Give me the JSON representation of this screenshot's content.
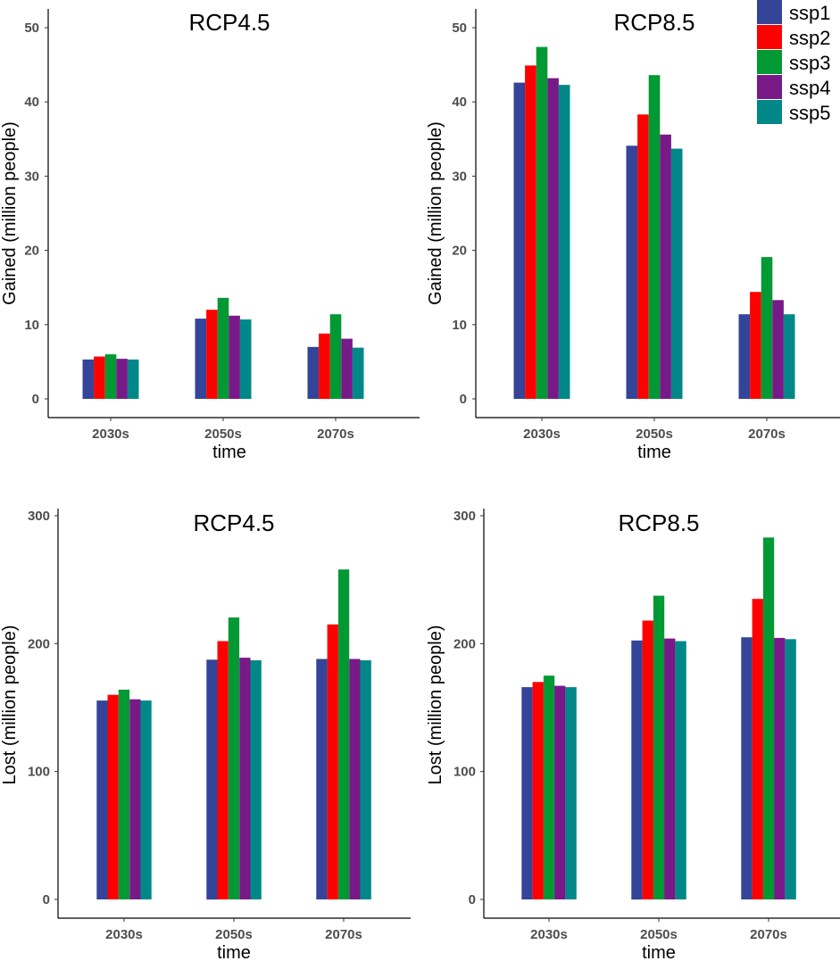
{
  "chart_data": [
    {
      "id": "gained-rcp45",
      "type": "bar",
      "title": "RCP4.5",
      "xlabel": "time",
      "ylabel": "Gained (million people)",
      "categories": [
        "2030s",
        "2050s",
        "2070s"
      ],
      "ylim": [
        0,
        50
      ],
      "yticks": [
        0,
        10,
        20,
        30,
        40,
        50
      ],
      "series": [
        {
          "name": "ssp1",
          "values": [
            5.3,
            10.8,
            7.0
          ]
        },
        {
          "name": "ssp2",
          "values": [
            5.7,
            12.0,
            8.8
          ]
        },
        {
          "name": "ssp3",
          "values": [
            6.0,
            13.6,
            11.4
          ]
        },
        {
          "name": "ssp4",
          "values": [
            5.4,
            11.2,
            8.1
          ]
        },
        {
          "name": "ssp5",
          "values": [
            5.3,
            10.7,
            6.9
          ]
        }
      ]
    },
    {
      "id": "gained-rcp85",
      "type": "bar",
      "title": "RCP8.5",
      "xlabel": "time",
      "ylabel": "Gained (million people)",
      "categories": [
        "2030s",
        "2050s",
        "2070s"
      ],
      "ylim": [
        0,
        50
      ],
      "yticks": [
        0,
        10,
        20,
        30,
        40,
        50
      ],
      "series": [
        {
          "name": "ssp1",
          "values": [
            42.6,
            34.1,
            11.4
          ]
        },
        {
          "name": "ssp2",
          "values": [
            44.9,
            38.3,
            14.4
          ]
        },
        {
          "name": "ssp3",
          "values": [
            47.4,
            43.6,
            19.1
          ]
        },
        {
          "name": "ssp4",
          "values": [
            43.2,
            35.6,
            13.3
          ]
        },
        {
          "name": "ssp5",
          "values": [
            42.3,
            33.7,
            11.4
          ]
        }
      ]
    },
    {
      "id": "lost-rcp45",
      "type": "bar",
      "title": "RCP4.5",
      "xlabel": "time",
      "ylabel": "Lost (million people)",
      "categories": [
        "2030s",
        "2050s",
        "2070s"
      ],
      "ylim": [
        0,
        300
      ],
      "yticks": [
        0,
        100,
        200,
        300
      ],
      "series": [
        {
          "name": "ssp1",
          "values": [
            155.5,
            187.5,
            188.0
          ]
        },
        {
          "name": "ssp2",
          "values": [
            160.0,
            202.0,
            215.0
          ]
        },
        {
          "name": "ssp3",
          "values": [
            164.0,
            220.5,
            258.0
          ]
        },
        {
          "name": "ssp4",
          "values": [
            156.5,
            189.0,
            188.0
          ]
        },
        {
          "name": "ssp5",
          "values": [
            155.5,
            187.0,
            187.0
          ]
        }
      ]
    },
    {
      "id": "lost-rcp85",
      "type": "bar",
      "title": "RCP8.5",
      "xlabel": "time",
      "ylabel": "Lost (million people)",
      "categories": [
        "2030s",
        "2050s",
        "2070s"
      ],
      "ylim": [
        0,
        300
      ],
      "yticks": [
        0,
        100,
        200,
        300
      ],
      "series": [
        {
          "name": "ssp1",
          "values": [
            166.0,
            202.5,
            205.0
          ]
        },
        {
          "name": "ssp2",
          "values": [
            170.0,
            218.0,
            235.0
          ]
        },
        {
          "name": "ssp3",
          "values": [
            175.0,
            237.5,
            283.0
          ]
        },
        {
          "name": "ssp4",
          "values": [
            167.0,
            204.0,
            204.5
          ]
        },
        {
          "name": "ssp5",
          "values": [
            166.0,
            202.0,
            203.5
          ]
        }
      ]
    }
  ],
  "legend": {
    "position": "top-right",
    "items": [
      {
        "label": "ssp1",
        "color": "#334499"
      },
      {
        "label": "ssp2",
        "color": "#ff0000"
      },
      {
        "label": "ssp3",
        "color": "#009933"
      },
      {
        "label": "ssp4",
        "color": "#771a88"
      },
      {
        "label": "ssp5",
        "color": "#008888"
      }
    ]
  }
}
